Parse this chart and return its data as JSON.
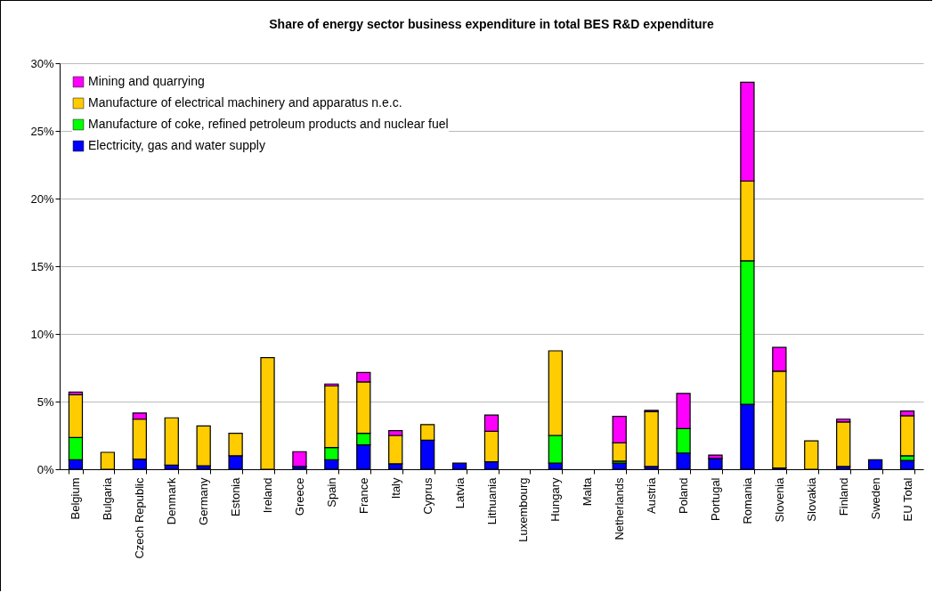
{
  "chart_data": {
    "type": "bar",
    "title": "Share of energy sector business expenditure in total BES R&D expenditure",
    "stacked": true,
    "grid": "y",
    "legend": "top left",
    "categories": [
      "Belgium",
      "Bulgaria",
      "Czech Republic",
      "Denmark",
      "Germany",
      "Estonia",
      "Ireland",
      "Greece",
      "Spain",
      "France",
      "Italy",
      "Cyprus",
      "Latvia",
      "Lithuania",
      "Luxembourg",
      "Hungary",
      "Malta",
      "Netherlands",
      "Austria",
      "Poland",
      "Portugal",
      "Romania",
      "Slovenia",
      "Slovakia",
      "Finland",
      "Sweden",
      "EU Total"
    ],
    "ylim": [
      0,
      30
    ],
    "yticks": [
      {
        "value": 0,
        "label": "0%"
      },
      {
        "value": 5,
        "label": "5%"
      },
      {
        "value": 10,
        "label": "10%"
      },
      {
        "value": 15,
        "label": "15%"
      },
      {
        "value": 20,
        "label": "20%"
      },
      {
        "value": 25,
        "label": "25%"
      },
      {
        "value": 30,
        "label": "30%"
      }
    ],
    "series": [
      {
        "name": "Electricity, gas and water supply",
        "color": "#0000ff",
        "values": [
          0.7,
          null,
          0.75,
          0.3,
          0.25,
          1.0,
          null,
          0.2,
          0.7,
          1.8,
          0.4,
          2.15,
          0.45,
          0.55,
          null,
          0.45,
          null,
          0.45,
          0.2,
          1.2,
          0.8,
          4.8,
          0.1,
          null,
          0.2,
          0.7,
          0.65
        ]
      },
      {
        "name": "Manufacture of coke, refined petroleum products and nuclear fuel",
        "color": "#00ff00",
        "values": [
          1.65,
          null,
          null,
          null,
          null,
          null,
          null,
          null,
          0.9,
          0.85,
          null,
          null,
          null,
          null,
          null,
          2.05,
          null,
          0.15,
          null,
          1.8,
          null,
          10.6,
          null,
          null,
          null,
          null,
          0.35
        ]
      },
      {
        "name": "Manufacture of electrical machinery and apparatus n.e.c.",
        "color": "#ffcc00",
        "values": [
          3.15,
          1.25,
          2.95,
          3.5,
          2.95,
          1.65,
          8.25,
          null,
          4.55,
          3.8,
          2.1,
          1.15,
          null,
          2.25,
          null,
          6.25,
          null,
          1.35,
          4.05,
          null,
          null,
          5.9,
          7.15,
          2.1,
          3.3,
          null,
          2.95
        ]
      },
      {
        "name": "Mining and quarrying",
        "color": "#ff00ff",
        "values": [
          0.2,
          null,
          0.45,
          null,
          null,
          null,
          null,
          1.1,
          0.15,
          0.7,
          0.35,
          null,
          null,
          1.2,
          null,
          null,
          null,
          1.95,
          0.1,
          2.6,
          0.25,
          7.3,
          1.75,
          null,
          0.2,
          null,
          0.35
        ]
      }
    ]
  }
}
